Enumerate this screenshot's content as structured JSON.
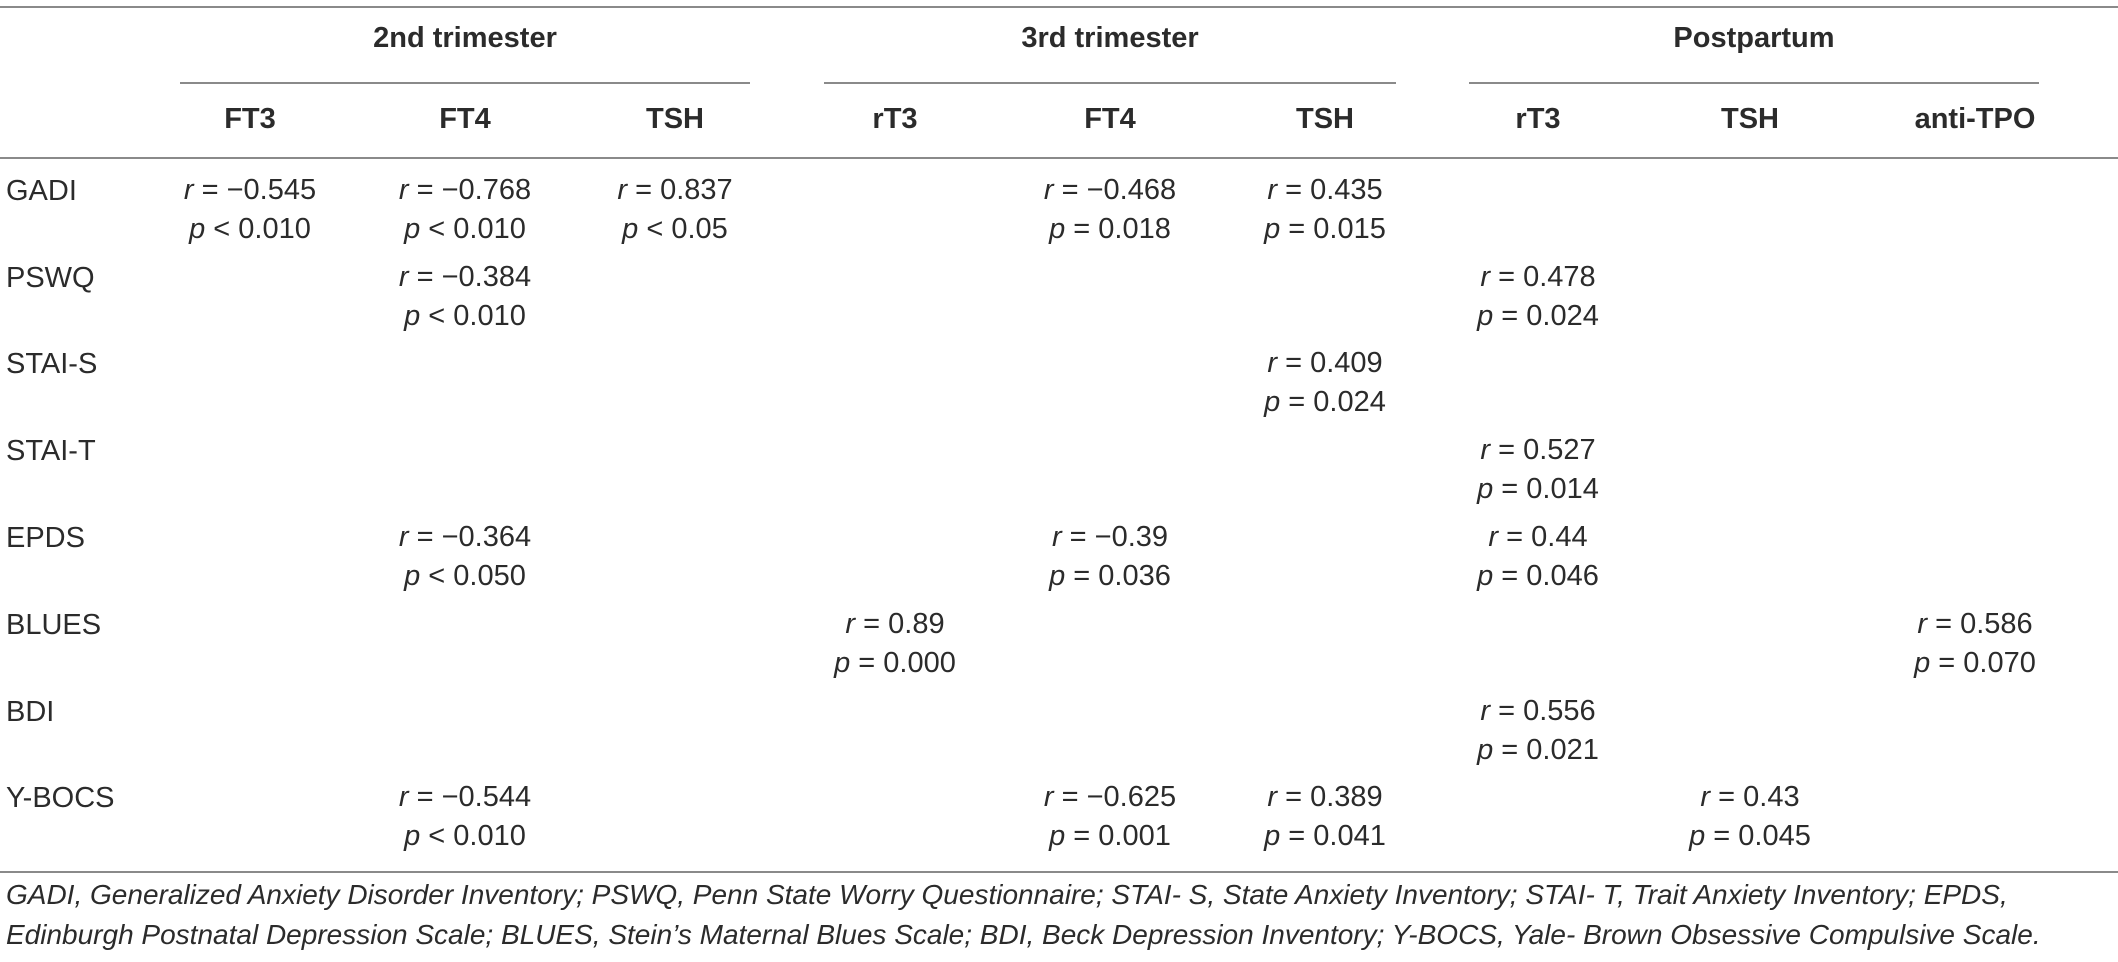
{
  "groups": [
    "2nd trimester",
    "3rd trimester",
    "Postpartum"
  ],
  "columns": [
    "FT3",
    "FT4",
    "TSH",
    "rT3",
    "FT4",
    "TSH",
    "rT3",
    "TSH",
    "anti-TPO"
  ],
  "rows": [
    {
      "label": "GADI",
      "cells": [
        {
          "col": 0,
          "r": "r = −0.545",
          "p": "p < 0.010"
        },
        {
          "col": 1,
          "r": "r = −0.768",
          "p": "p < 0.010"
        },
        {
          "col": 2,
          "r": "r = 0.837",
          "p": "p < 0.05"
        },
        {
          "col": 4,
          "r": "r = −0.468",
          "p": "p = 0.018"
        },
        {
          "col": 5,
          "r": "r = 0.435",
          "p": "p = 0.015"
        }
      ]
    },
    {
      "label": "PSWQ",
      "cells": [
        {
          "col": 1,
          "r": "r = −0.384",
          "p": "p < 0.010"
        },
        {
          "col": 6,
          "r": "r = 0.478",
          "p": "p = 0.024"
        }
      ]
    },
    {
      "label": "STAI-S",
      "cells": [
        {
          "col": 5,
          "r": "r = 0.409",
          "p": "p = 0.024"
        }
      ]
    },
    {
      "label": "STAI-T",
      "cells": [
        {
          "col": 6,
          "r": "r = 0.527",
          "p": "p = 0.014"
        }
      ]
    },
    {
      "label": "EPDS",
      "cells": [
        {
          "col": 1,
          "r": "r = −0.364",
          "p": "p < 0.050"
        },
        {
          "col": 4,
          "r": "r = −0.39",
          "p": "p = 0.036"
        },
        {
          "col": 6,
          "r": "r = 0.44",
          "p": "p = 0.046"
        }
      ]
    },
    {
      "label": "BLUES",
      "cells": [
        {
          "col": 3,
          "r": "r = 0.89",
          "p": "p = 0.000"
        },
        {
          "col": 8,
          "r": "r = 0.586",
          "p": "p = 0.070"
        }
      ]
    },
    {
      "label": "BDI",
      "cells": [
        {
          "col": 6,
          "r": "r = 0.556",
          "p": "p = 0.021"
        }
      ]
    },
    {
      "label": "Y-BOCS",
      "cells": [
        {
          "col": 1,
          "r": "r = −0.544",
          "p": "p < 0.010"
        },
        {
          "col": 4,
          "r": "r = −0.625",
          "p": "p = 0.001"
        },
        {
          "col": 5,
          "r": "r = 0.389",
          "p": "p = 0.041"
        },
        {
          "col": 7,
          "r": "r = 0.43",
          "p": "p = 0.045"
        }
      ]
    }
  ],
  "footnote": "GADI, Generalized Anxiety Disorder Inventory; PSWQ, Penn State Worry Questionnaire; STAI- S, State Anxiety Inventory; STAI- T, Trait Anxiety Inventory; EPDS, Edinburgh Postnatal Depression Scale; BLUES, Stein’s Maternal Blues Scale; BDI, Beck Depression Inventory; Y-BOCS, Yale- Brown Obsessive Compulsive Scale."
}
